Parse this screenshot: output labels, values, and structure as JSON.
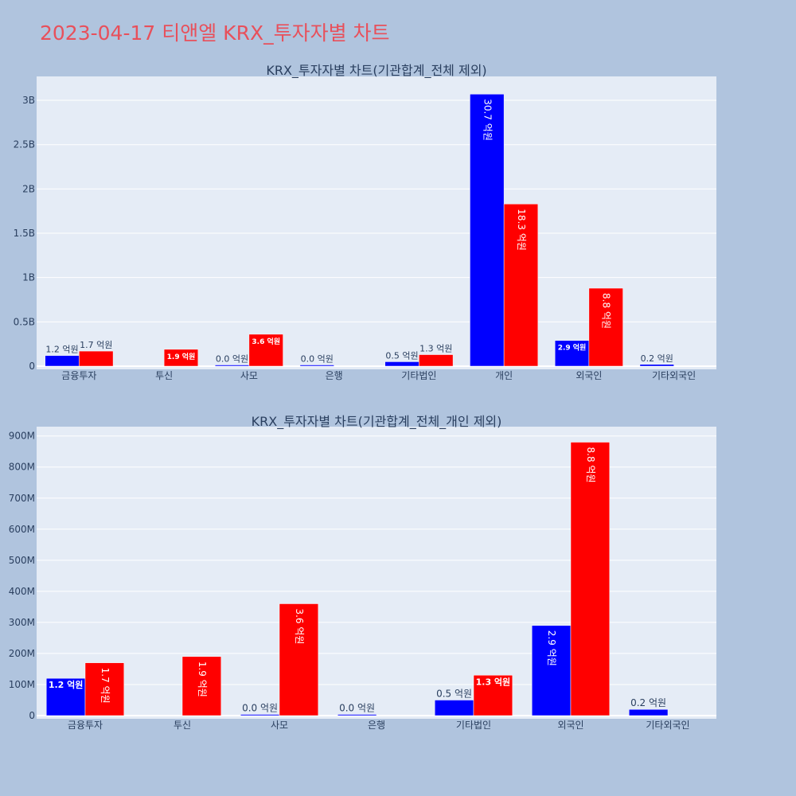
{
  "title": "2023-04-17 티앤엘 KRX_투자자별 차트",
  "colors": {
    "buy": "#0000ff",
    "sell": "#ff0000",
    "plot_bg": "#e5ecf6",
    "page_bg": "#b0c4de",
    "title": "#e8505b",
    "text": "#2a3f5f"
  },
  "chart_data": [
    {
      "type": "bar",
      "title": "KRX_투자자별 차트(기관합계_전체 제외)",
      "categories": [
        "금융투자",
        "투신",
        "사모",
        "은행",
        "기타법인",
        "개인",
        "외국인",
        "기타외국인"
      ],
      "series": [
        {
          "color": "#0000ff",
          "values": [
            120000000,
            null,
            1000000,
            1000000,
            50000000,
            3070000000,
            290000000,
            20000000
          ],
          "labels": [
            "1.2 억원",
            "",
            "0.0 억원",
            "0.0 억원",
            "0.5 억원",
            "30.7 억원",
            "2.9 억원",
            "0.2 억원"
          ]
        },
        {
          "color": "#ff0000",
          "values": [
            170000000,
            190000000,
            360000000,
            null,
            130000000,
            1830000000,
            880000000,
            null
          ],
          "labels": [
            "1.7 억원",
            "1.9 억원",
            "3.6 억원",
            "",
            "1.3 억원",
            "18.3 억원",
            "8.8 억원",
            ""
          ]
        }
      ],
      "ylim": [
        0,
        3270000000
      ],
      "yticks": [
        0,
        500000000,
        1000000000,
        1500000000,
        2000000000,
        2500000000,
        3000000000
      ],
      "ytick_labels": [
        "0",
        "0.5B",
        "1B",
        "1.5B",
        "2B",
        "2.5B",
        "3B"
      ]
    },
    {
      "type": "bar",
      "title": "KRX_투자자별 차트(기관합계_전체_개인 제외)",
      "categories": [
        "금융투자",
        "투신",
        "사모",
        "은행",
        "기타법인",
        "외국인",
        "기타외국인"
      ],
      "series": [
        {
          "color": "#0000ff",
          "values": [
            120000000,
            null,
            1000000,
            1000000,
            50000000,
            290000000,
            20000000
          ],
          "labels": [
            "1.2 억원",
            "",
            "0.0 억원",
            "0.0 억원",
            "0.5 억원",
            "2.9 억원",
            "0.2 억원"
          ]
        },
        {
          "color": "#ff0000",
          "values": [
            170000000,
            190000000,
            360000000,
            null,
            130000000,
            880000000,
            null
          ],
          "labels": [
            "1.7 억원",
            "1.9 억원",
            "3.6 억원",
            "",
            "1.3 억원",
            "8.8 억원",
            ""
          ]
        }
      ],
      "ylim": [
        0,
        930000000
      ],
      "yticks": [
        0,
        100000000,
        200000000,
        300000000,
        400000000,
        500000000,
        600000000,
        700000000,
        800000000,
        900000000
      ],
      "ytick_labels": [
        "0",
        "100M",
        "200M",
        "300M",
        "400M",
        "500M",
        "600M",
        "700M",
        "800M",
        "900M"
      ]
    }
  ]
}
